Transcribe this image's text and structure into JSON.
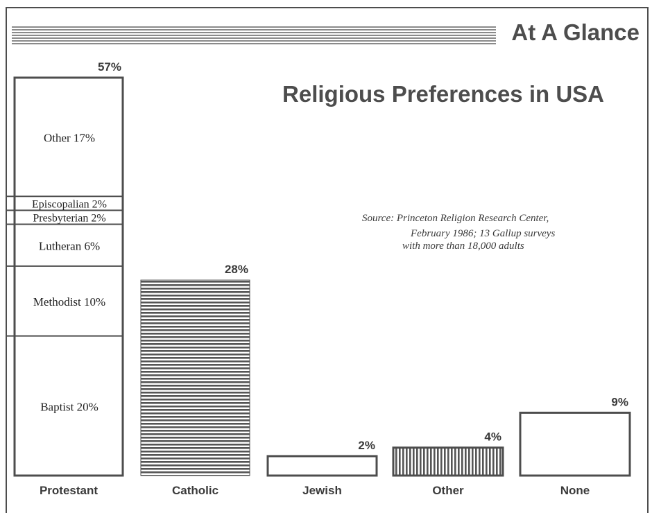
{
  "header": {
    "banner_title": "At A Glance"
  },
  "title": "Religious Preferences in USA",
  "source": {
    "line1": "Source: Princeton Religion Research Center,",
    "line2": "February 1986; 13 Gallup surveys",
    "line3": "with more than 18,000 adults"
  },
  "chart_data": {
    "type": "bar",
    "title": "Religious Preferences in USA",
    "categories": [
      "Protestant",
      "Catholic",
      "Jewish",
      "Other",
      "None"
    ],
    "values": [
      57,
      28,
      2,
      4,
      9
    ],
    "value_labels": [
      "57%",
      "28%",
      "2%",
      "4%",
      "9%"
    ],
    "unit": "%",
    "ylim": [
      0,
      57
    ],
    "grid": false,
    "protestant_breakdown": [
      {
        "label": "Baptist 20%",
        "value": 20
      },
      {
        "label": "Methodist 10%",
        "value": 10
      },
      {
        "label": "Lutheran 6%",
        "value": 6
      },
      {
        "label": "Presbyterian 2%",
        "value": 2
      },
      {
        "label": "Episcopalian 2%",
        "value": 2
      },
      {
        "label": "Other 17%",
        "value": 17
      }
    ]
  },
  "colors": {
    "ink": "#4d4d4d",
    "background": "#ffffff"
  }
}
